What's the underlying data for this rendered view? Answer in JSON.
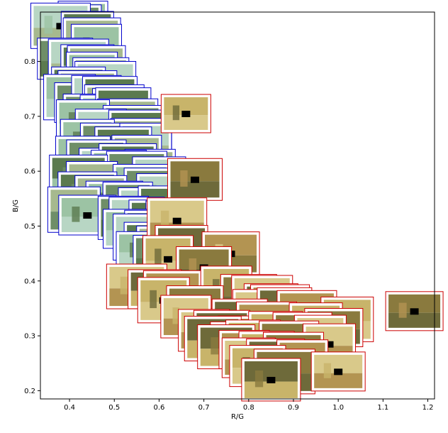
{
  "chart_data": {
    "type": "scatter",
    "marker": "image-thumbnail",
    "xlabel": "R/G",
    "ylabel": "B/G",
    "xlim": [
      0.335,
      1.215
    ],
    "ylim": [
      0.185,
      0.89
    ],
    "grid": false,
    "legend": "none",
    "x_ticks": [
      "0.4",
      "0.5",
      "0.6",
      "0.7",
      "0.8",
      "0.9",
      "1.0",
      "1.1",
      "1.2"
    ],
    "y_ticks": [
      "0.2",
      "0.3",
      "0.4",
      "0.5",
      "0.6",
      "0.7",
      "0.8"
    ],
    "colors": {
      "blue_cluster_frame": "#0000cc",
      "red_cluster_frame": "#cc0000",
      "thumb_outdoor": "#8fae8a",
      "thumb_indoor": "#b8a368"
    },
    "series": [
      {
        "frame_color": "#0000cc",
        "points": [
          {
            "x": 0.43,
            "y": 0.875
          },
          {
            "x": 0.41,
            "y": 0.865
          },
          {
            "x": 0.38,
            "y": 0.865
          },
          {
            "x": 0.44,
            "y": 0.855
          },
          {
            "x": 0.45,
            "y": 0.84
          },
          {
            "x": 0.46,
            "y": 0.825
          },
          {
            "x": 0.39,
            "y": 0.805
          },
          {
            "x": 0.42,
            "y": 0.8
          },
          {
            "x": 0.44,
            "y": 0.795
          },
          {
            "x": 0.46,
            "y": 0.79
          },
          {
            "x": 0.45,
            "y": 0.775
          },
          {
            "x": 0.47,
            "y": 0.77
          },
          {
            "x": 0.48,
            "y": 0.76
          },
          {
            "x": 0.42,
            "y": 0.755
          },
          {
            "x": 0.44,
            "y": 0.745
          },
          {
            "x": 0.4,
            "y": 0.735
          },
          {
            "x": 0.43,
            "y": 0.725
          },
          {
            "x": 0.46,
            "y": 0.735
          },
          {
            "x": 0.49,
            "y": 0.73
          },
          {
            "x": 0.5,
            "y": 0.72
          },
          {
            "x": 0.51,
            "y": 0.71
          },
          {
            "x": 0.45,
            "y": 0.705
          },
          {
            "x": 0.48,
            "y": 0.7
          },
          {
            "x": 0.52,
            "y": 0.71
          },
          {
            "x": 0.53,
            "y": 0.695
          },
          {
            "x": 0.43,
            "y": 0.69
          },
          {
            "x": 0.54,
            "y": 0.685
          },
          {
            "x": 0.47,
            "y": 0.675
          },
          {
            "x": 0.55,
            "y": 0.67
          },
          {
            "x": 0.56,
            "y": 0.66
          },
          {
            "x": 0.44,
            "y": 0.655
          },
          {
            "x": 0.49,
            "y": 0.645
          },
          {
            "x": 0.57,
            "y": 0.65
          },
          {
            "x": 0.52,
            "y": 0.64
          },
          {
            "x": 0.55,
            "y": 0.63
          },
          {
            "x": 0.43,
            "y": 0.625
          },
          {
            "x": 0.46,
            "y": 0.615
          },
          {
            "x": 0.48,
            "y": 0.605
          },
          {
            "x": 0.53,
            "y": 0.61
          },
          {
            "x": 0.58,
            "y": 0.605
          },
          {
            "x": 0.51,
            "y": 0.6
          },
          {
            "x": 0.55,
            "y": 0.595
          },
          {
            "x": 0.6,
            "y": 0.59
          },
          {
            "x": 0.42,
            "y": 0.59
          },
          {
            "x": 0.45,
            "y": 0.575
          },
          {
            "x": 0.56,
            "y": 0.575
          },
          {
            "x": 0.59,
            "y": 0.565
          },
          {
            "x": 0.61,
            "y": 0.56
          },
          {
            "x": 0.44,
            "y": 0.56
          },
          {
            "x": 0.47,
            "y": 0.55
          },
          {
            "x": 0.5,
            "y": 0.545
          },
          {
            "x": 0.53,
            "y": 0.54
          },
          {
            "x": 0.57,
            "y": 0.535
          },
          {
            "x": 0.62,
            "y": 0.535
          },
          {
            "x": 0.41,
            "y": 0.53
          },
          {
            "x": 0.44,
            "y": 0.52
          },
          {
            "x": 0.52,
            "y": 0.515
          },
          {
            "x": 0.55,
            "y": 0.51
          },
          {
            "x": 0.6,
            "y": 0.51
          },
          {
            "x": 0.63,
            "y": 0.505
          },
          {
            "x": 0.54,
            "y": 0.495
          },
          {
            "x": 0.58,
            "y": 0.49
          },
          {
            "x": 0.56,
            "y": 0.48
          },
          {
            "x": 0.59,
            "y": 0.47
          },
          {
            "x": 0.61,
            "y": 0.46
          },
          {
            "x": 0.57,
            "y": 0.455
          },
          {
            "x": 0.6,
            "y": 0.445
          }
        ]
      },
      {
        "frame_color": "#cc0000",
        "points": [
          {
            "x": 0.66,
            "y": 0.705
          },
          {
            "x": 0.68,
            "y": 0.585
          },
          {
            "x": 0.64,
            "y": 0.51
          },
          {
            "x": 0.65,
            "y": 0.465
          },
          {
            "x": 0.76,
            "y": 0.45
          },
          {
            "x": 0.62,
            "y": 0.44
          },
          {
            "x": 0.7,
            "y": 0.425
          },
          {
            "x": 0.55,
            "y": 0.39
          },
          {
            "x": 0.59,
            "y": 0.385
          },
          {
            "x": 0.63,
            "y": 0.38
          },
          {
            "x": 0.75,
            "y": 0.385
          },
          {
            "x": 0.8,
            "y": 0.375
          },
          {
            "x": 0.83,
            "y": 0.37
          },
          {
            "x": 0.85,
            "y": 0.36
          },
          {
            "x": 0.87,
            "y": 0.355
          },
          {
            "x": 0.61,
            "y": 0.365
          },
          {
            "x": 0.68,
            "y": 0.355
          },
          {
            "x": 0.82,
            "y": 0.345
          },
          {
            "x": 0.88,
            "y": 0.345
          },
          {
            "x": 0.93,
            "y": 0.345
          },
          {
            "x": 1.02,
            "y": 0.33
          },
          {
            "x": 1.17,
            "y": 0.345
          },
          {
            "x": 0.66,
            "y": 0.335
          },
          {
            "x": 0.78,
            "y": 0.325
          },
          {
            "x": 0.84,
            "y": 0.325
          },
          {
            "x": 0.95,
            "y": 0.32
          },
          {
            "x": 0.99,
            "y": 0.315
          },
          {
            "x": 0.7,
            "y": 0.31
          },
          {
            "x": 0.74,
            "y": 0.305
          },
          {
            "x": 0.8,
            "y": 0.3
          },
          {
            "x": 0.86,
            "y": 0.305
          },
          {
            "x": 0.92,
            "y": 0.3
          },
          {
            "x": 0.96,
            "y": 0.3
          },
          {
            "x": 0.72,
            "y": 0.295
          },
          {
            "x": 0.77,
            "y": 0.29
          },
          {
            "x": 0.81,
            "y": 0.29
          },
          {
            "x": 0.89,
            "y": 0.285
          },
          {
            "x": 0.98,
            "y": 0.285
          },
          {
            "x": 0.75,
            "y": 0.28
          },
          {
            "x": 0.79,
            "y": 0.275
          },
          {
            "x": 0.84,
            "y": 0.27
          },
          {
            "x": 0.9,
            "y": 0.265
          },
          {
            "x": 0.8,
            "y": 0.26
          },
          {
            "x": 0.86,
            "y": 0.255
          },
          {
            "x": 0.92,
            "y": 0.25
          },
          {
            "x": 0.82,
            "y": 0.245
          },
          {
            "x": 0.88,
            "y": 0.235
          },
          {
            "x": 1.0,
            "y": 0.235
          },
          {
            "x": 0.85,
            "y": 0.22
          }
        ]
      }
    ]
  }
}
